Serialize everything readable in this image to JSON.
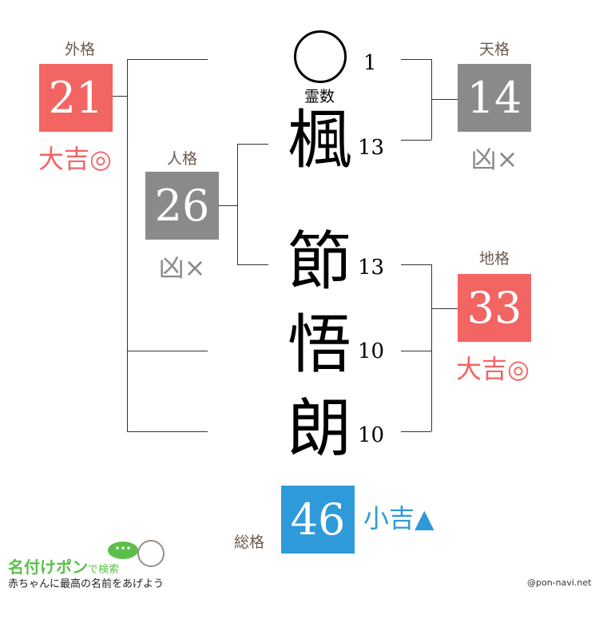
{
  "colors": {
    "good": "#f26563",
    "bad": "#8a8a8a",
    "mid": "#2e9ad9",
    "label": "#6b5a4e"
  },
  "gaikaku": {
    "label": "外格",
    "value": "21",
    "fortune": "大吉◎"
  },
  "jinkaku": {
    "label": "人格",
    "value": "26",
    "fortune": "凶×"
  },
  "tenkaku": {
    "label": "天格",
    "value": "14",
    "fortune": "凶×"
  },
  "chikaku": {
    "label": "地格",
    "value": "33",
    "fortune": "大吉◎"
  },
  "soukaku": {
    "label": "総格",
    "value": "46",
    "fortune": "小吉▲"
  },
  "reisu": {
    "symbol": "◯",
    "label": "霊数",
    "strokes": "1"
  },
  "chars": [
    {
      "char": "楓",
      "strokes": "13"
    },
    {
      "char": "節",
      "strokes": "13"
    },
    {
      "char": "悟",
      "strokes": "10"
    },
    {
      "char": "朗",
      "strokes": "10"
    }
  ],
  "logo": {
    "title": "名付けポン",
    "suffix": "で検索",
    "tagline": "赤ちゃんに最高の名前をあげよう"
  },
  "credit": "@pon-navi.net"
}
